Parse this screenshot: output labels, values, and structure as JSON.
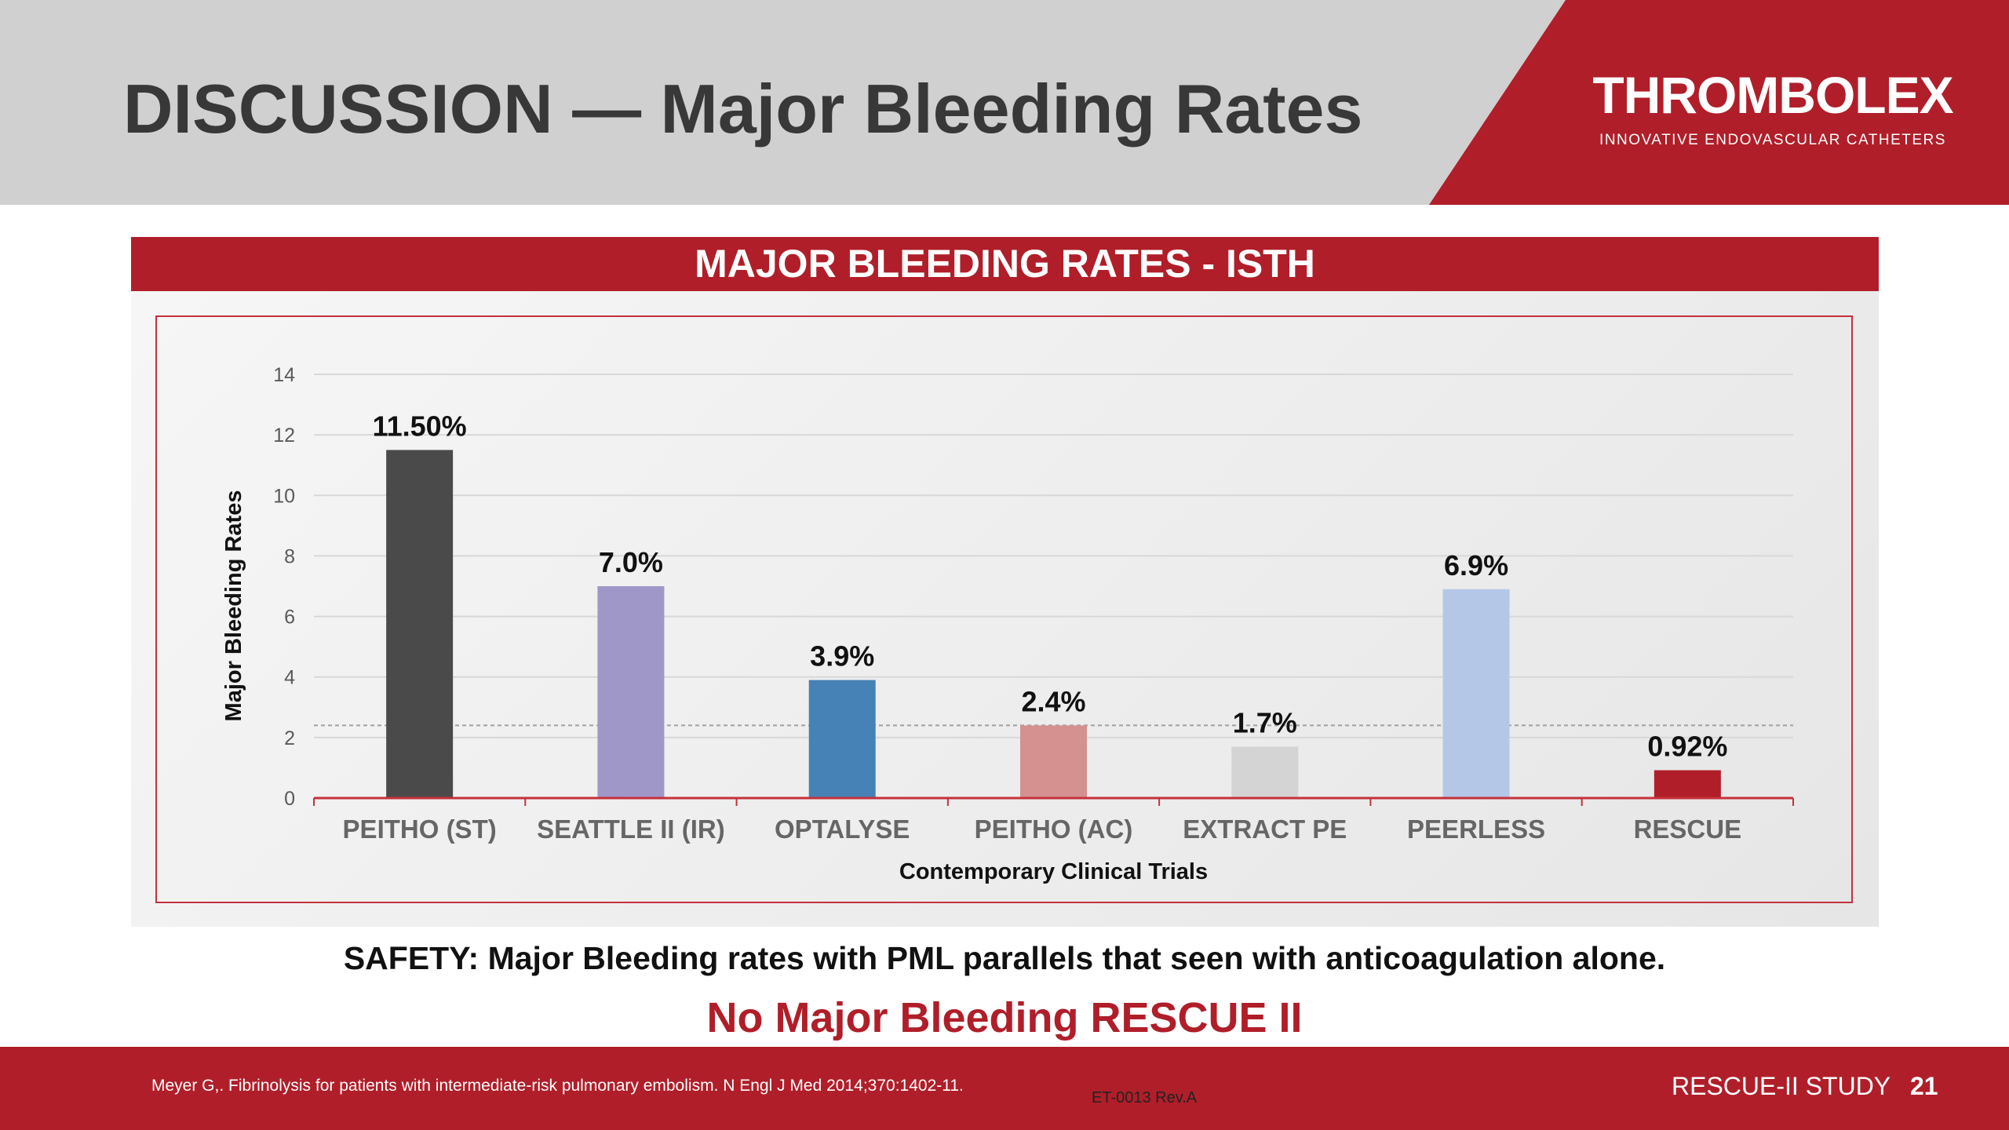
{
  "header": {
    "title": "DISCUSSION — Major Bleeding Rates"
  },
  "logo": {
    "name": "THROMBOLEX",
    "tagline": "INNOVATIVE ENDOVASCULAR CATHETERS"
  },
  "banner": "MAJOR BLEEDING RATES - ISTH",
  "chart_data": {
    "type": "bar",
    "title": "MAJOR BLEEDING RATES - ISTH",
    "xlabel": "Contemporary Clinical Trials",
    "ylabel": "Major Bleeding Rates",
    "ylim": [
      0,
      14
    ],
    "yticks": [
      "0",
      "2",
      "4",
      "6",
      "8",
      "10",
      "12",
      "14"
    ],
    "grid": true,
    "categories": [
      "PEITHO (ST)",
      "SEATTLE II (IR)",
      "OPTALYSE",
      "PEITHO (AC)",
      "EXTRACT PE",
      "PEERLESS",
      "RESCUE"
    ],
    "values": [
      11.5,
      7.0,
      3.9,
      2.4,
      1.7,
      6.9,
      0.92
    ],
    "labels": [
      "11.50%",
      "7.0%",
      "3.9%",
      "2.4%",
      "1.7%",
      "6.9%",
      "0.92%"
    ],
    "colors": [
      "#4a4a4a",
      "#a097c9",
      "#4682b6",
      "#d49190",
      "#d4d4d4",
      "#b4c7e7",
      "#b01e29"
    ],
    "reference_line": 2.4
  },
  "safety": "SAFETY: Major Bleeding rates with PML parallels that seen with anticoagulation alone.",
  "conclusion": "No Major Bleeding RESCUE II",
  "footer": {
    "citation": "Meyer G,. Fibrinolysis for patients with intermediate-risk pulmonary embolism. N Engl J Med 2014;370:1402-11.",
    "doc_code": "ET-0013 Rev.A",
    "study": "RESCUE-II STUDY",
    "page": "21"
  }
}
